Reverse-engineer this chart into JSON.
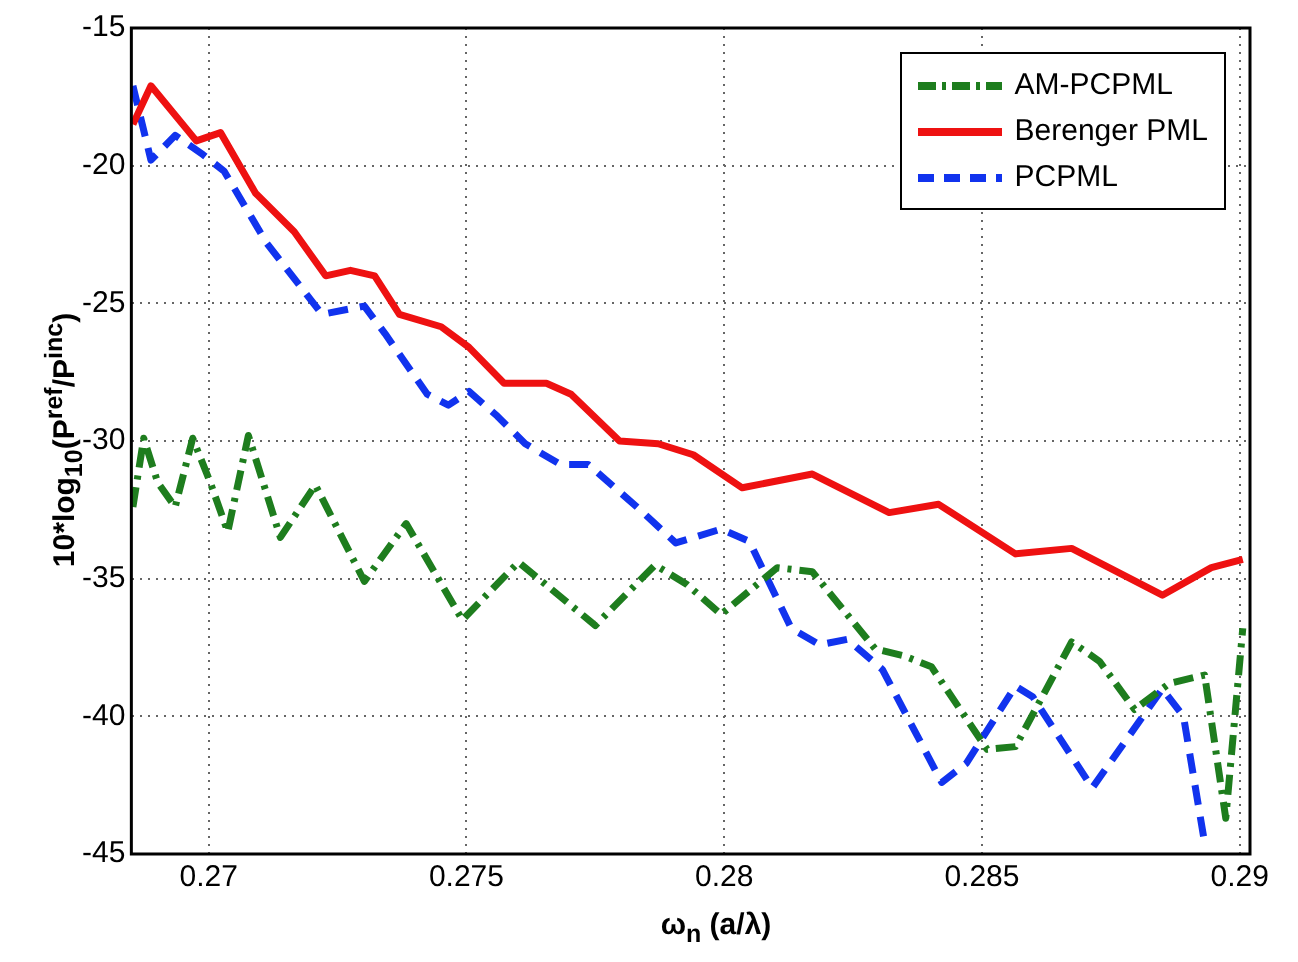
{
  "chart_data": {
    "type": "line",
    "xlabel": "ω$_{n}$ (a/λ)",
    "ylabel": "10*log$_{10}$(P$^{ref}$/P$^{inc}$)",
    "xlim": [
      0.2685,
      0.2902
    ],
    "xticks": [
      0.27,
      0.275,
      0.28,
      0.285,
      0.29
    ],
    "ylim": [
      -45,
      -15
    ],
    "yticks": [
      -45,
      -40,
      -35,
      -30,
      -25,
      -20,
      -15
    ],
    "grid": true,
    "legend": "top right",
    "marker": "none",
    "series": [
      {
        "name": "AM-PCPML",
        "color": "#1e7d1e",
        "line_style": "dashdot",
        "x": [
          0.26853,
          0.26874,
          0.26901,
          0.26935,
          0.26969,
          0.27003,
          0.27037,
          0.27077,
          0.27139,
          0.27207,
          0.27302,
          0.27383,
          0.27492,
          0.27601,
          0.2775,
          0.27866,
          0.27927,
          0.27994,
          0.28103,
          0.28171,
          0.28293,
          0.28348,
          0.28402,
          0.2851,
          0.28565,
          0.28674,
          0.28728,
          0.28796,
          0.28864,
          0.28932,
          0.28973,
          0.29006
        ],
        "values": [
          -32.4,
          -29.9,
          -31.5,
          -32.4,
          -29.9,
          -31.5,
          -33.3,
          -29.8,
          -33.5,
          -31.6,
          -35.1,
          -33.0,
          -36.5,
          -34.4,
          -36.7,
          -34.5,
          -35.2,
          -36.3,
          -34.6,
          -34.75,
          -37.55,
          -37.8,
          -38.2,
          -41.2,
          -41.1,
          -37.3,
          -38.0,
          -39.75,
          -38.8,
          -38.5,
          -43.7,
          -36.8
        ]
      },
      {
        "name": "Berenger PML",
        "color": "#ee1111",
        "line_style": "solid",
        "x": [
          0.26853,
          0.26888,
          0.26976,
          0.27023,
          0.27091,
          0.27166,
          0.27227,
          0.27275,
          0.27322,
          0.2737,
          0.27451,
          0.27505,
          0.27573,
          0.27655,
          0.27703,
          0.27797,
          0.27872,
          0.2794,
          0.28035,
          0.28171,
          0.2832,
          0.28416,
          0.28565,
          0.28674,
          0.2885,
          0.28945,
          0.29006
        ],
        "values": [
          -18.5,
          -17.1,
          -19.1,
          -18.8,
          -21.0,
          -22.4,
          -24.0,
          -23.8,
          -24.0,
          -25.4,
          -25.85,
          -26.6,
          -27.9,
          -27.9,
          -28.3,
          -30.0,
          -30.1,
          -30.5,
          -31.7,
          -31.2,
          -32.6,
          -32.3,
          -34.1,
          -33.9,
          -35.6,
          -34.6,
          -34.3
        ]
      },
      {
        "name": "PCPML",
        "color": "#1133ee",
        "line_style": "dashed",
        "x": [
          0.26853,
          0.26888,
          0.26935,
          0.26989,
          0.2703,
          0.27112,
          0.2722,
          0.27302,
          0.27342,
          0.27424,
          0.27465,
          0.27505,
          0.2756,
          0.27614,
          0.27682,
          0.27736,
          0.27831,
          0.27906,
          0.27994,
          0.28049,
          0.2813,
          0.28185,
          0.28239,
          0.28307,
          0.28422,
          0.2847,
          0.28565,
          0.28599,
          0.28714,
          0.2885,
          0.28891,
          0.28932
        ],
        "values": [
          -17.1,
          -19.8,
          -18.9,
          -19.6,
          -20.2,
          -22.8,
          -25.4,
          -25.1,
          -26.1,
          -28.3,
          -28.7,
          -28.2,
          -29.1,
          -30.1,
          -30.85,
          -30.85,
          -32.4,
          -33.7,
          -33.2,
          -33.65,
          -36.8,
          -37.4,
          -37.2,
          -38.3,
          -42.4,
          -41.7,
          -38.9,
          -39.3,
          -42.6,
          -39.0,
          -40.0,
          -44.6
        ]
      }
    ]
  }
}
